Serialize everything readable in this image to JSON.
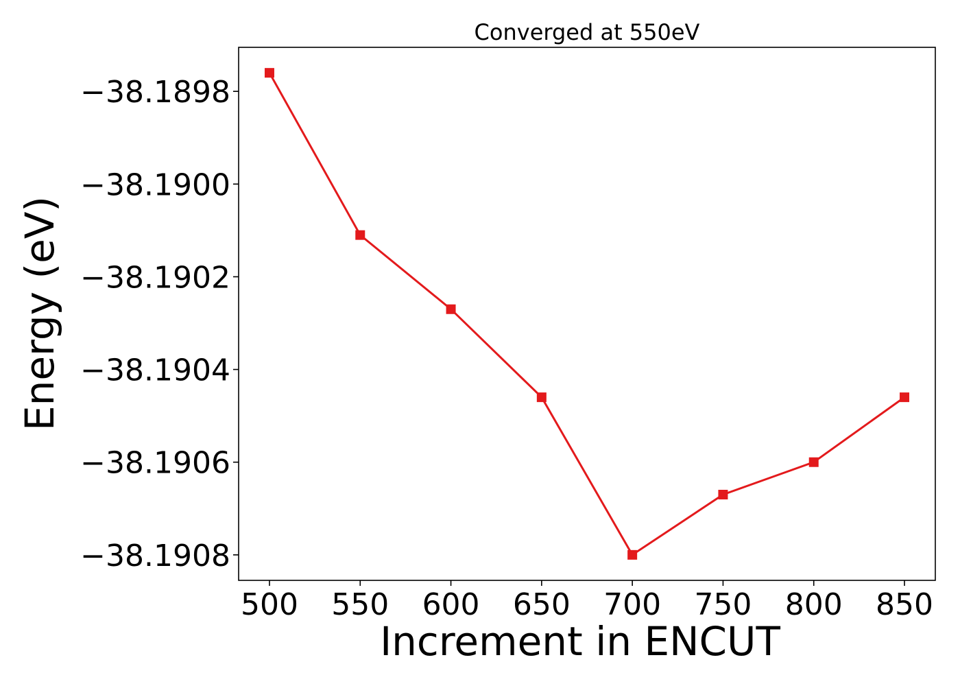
{
  "chart_data": {
    "type": "line",
    "title": "Converged at 550eV",
    "xlabel": "Increment in ENCUT",
    "ylabel": "Energy (eV)",
    "x": [
      500,
      550,
      600,
      650,
      700,
      750,
      800,
      850
    ],
    "series": [
      {
        "values": [
          -38.18976,
          -38.19011,
          -38.19027,
          -38.19046,
          -38.1908,
          -38.19067,
          -38.1906,
          -38.19046
        ],
        "color": "#e31a1c",
        "marker": "square"
      }
    ],
    "xlim": [
      483,
      867
    ],
    "ylim": [
      -38.190855,
      -38.189705
    ],
    "xticks": [
      500,
      550,
      600,
      650,
      700,
      750,
      800,
      850
    ],
    "xtick_labels": [
      "500",
      "550",
      "600",
      "650",
      "700",
      "750",
      "800",
      "850"
    ],
    "yticks": [
      -38.1898,
      -38.19,
      -38.1902,
      -38.1904,
      -38.1906,
      -38.1908
    ],
    "ytick_labels": [
      "−38.1898",
      "−38.1900",
      "−38.1902",
      "−38.1904",
      "−38.1906",
      "−38.1908"
    ],
    "grid": false,
    "legend": false
  }
}
